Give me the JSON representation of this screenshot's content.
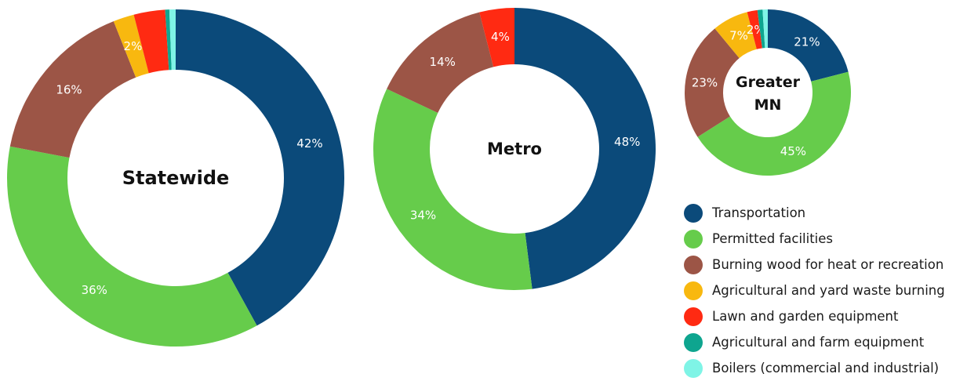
{
  "legend": {
    "items": [
      {
        "label": "Transportation",
        "color": "#0b4a7a"
      },
      {
        "label": "Permitted facilities",
        "color": "#66cc4b"
      },
      {
        "label": "Burning wood for heat or recreation",
        "color": "#9c5546"
      },
      {
        "label": "Agricultural and yard waste burning",
        "color": "#f8b80f"
      },
      {
        "label": "Lawn and garden equipment",
        "color": "#ff2a12"
      },
      {
        "label": "Agricultural and farm equipment",
        "color": "#0ea58f"
      },
      {
        "label": "Boilers (commercial and industrial)",
        "color": "#7ff4e6"
      }
    ]
  },
  "chart_data": [
    {
      "type": "pie",
      "title": "Statewide",
      "categories": [
        "Transportation",
        "Permitted facilities",
        "Burning wood for heat or recreation",
        "Agricultural and yard waste burning",
        "Lawn and garden equipment",
        "Agricultural and farm equipment",
        "Boilers (commercial and industrial)"
      ],
      "values": [
        42,
        36,
        16,
        2,
        3,
        0.4,
        0.6
      ],
      "data_labels": [
        "42%",
        "36%",
        "16%",
        "2%",
        "",
        "",
        ""
      ]
    },
    {
      "type": "pie",
      "title": "Metro",
      "categories": [
        "Transportation",
        "Permitted facilities",
        "Burning wood for heat or recreation",
        "Agricultural and yard waste burning",
        "Lawn and garden equipment",
        "Agricultural and farm equipment",
        "Boilers (commercial and industrial)"
      ],
      "values": [
        48,
        34,
        14,
        0,
        4,
        0,
        0
      ],
      "data_labels": [
        "48%",
        "34%",
        "14%",
        "",
        "4%",
        "",
        ""
      ]
    },
    {
      "type": "pie",
      "title": "Greater MN",
      "categories": [
        "Transportation",
        "Permitted facilities",
        "Burning wood for heat or recreation",
        "Agricultural and yard waste burning",
        "Lawn and garden equipment",
        "Agricultural and farm equipment",
        "Boilers (commercial and industrial)"
      ],
      "values": [
        21,
        45,
        23,
        7,
        2,
        1,
        1
      ],
      "data_labels": [
        "21%",
        "45%",
        "23%",
        "7%",
        "2%",
        "",
        ""
      ]
    }
  ]
}
